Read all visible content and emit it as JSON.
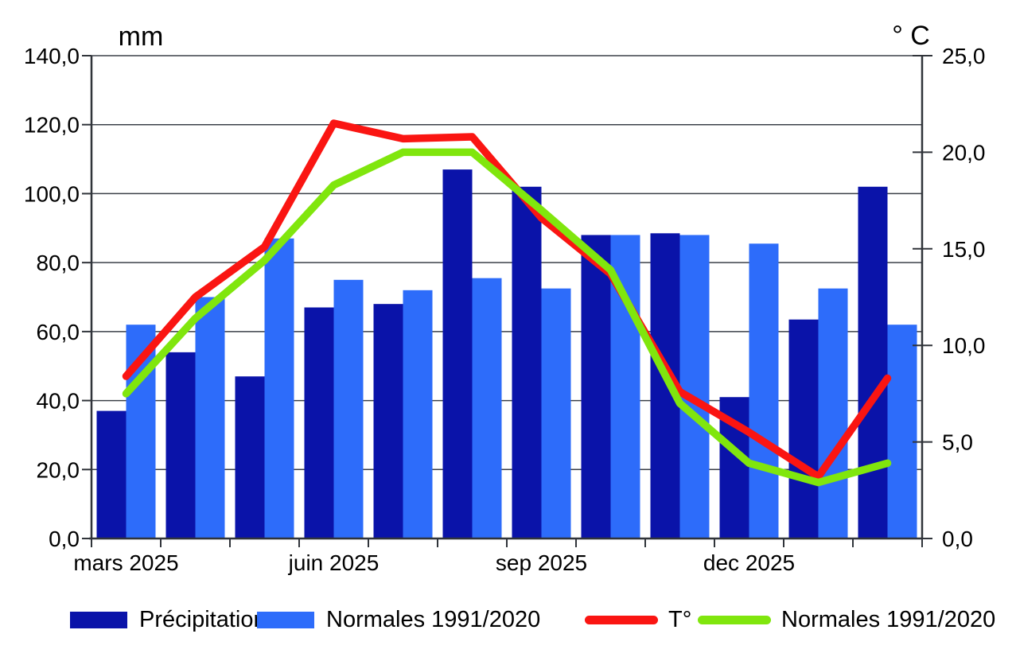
{
  "chart_data": {
    "type": "combo-bar-line",
    "title_left": "mm",
    "title_right": "° C",
    "n_groups": 12,
    "grid_on": true,
    "colors": {
      "precipitation_bar": "#0a13a9",
      "normales_bar": "#2d6cfa",
      "temperature_line": "#fa1512",
      "normales_line": "#80e60d",
      "axis": "#30343a",
      "gridline": "#3b4049",
      "text": "#000000"
    },
    "left_axis": {
      "title": "mm",
      "min": 0,
      "max": 140,
      "step": 20,
      "ticks": [
        {
          "v": 140,
          "label": "140,0"
        },
        {
          "v": 120,
          "label": "120,0"
        },
        {
          "v": 100,
          "label": "100,0"
        },
        {
          "v": 80,
          "label": "80,0"
        },
        {
          "v": 60,
          "label": "60,0"
        },
        {
          "v": 40,
          "label": "40,0"
        },
        {
          "v": 20,
          "label": "20,0"
        },
        {
          "v": 0,
          "label": "0,0"
        }
      ]
    },
    "right_axis": {
      "title": "° C",
      "min": 0,
      "max": 25,
      "step": 5,
      "ticks": [
        {
          "v": 25,
          "label": "25,0"
        },
        {
          "v": 20,
          "label": "20,0"
        },
        {
          "v": 15,
          "label": "15,0"
        },
        {
          "v": 10,
          "label": "10,0"
        },
        {
          "v": 5,
          "label": "5,0"
        },
        {
          "v": 0,
          "label": "0,0"
        }
      ]
    },
    "x_tick_labels": [
      {
        "group": 0,
        "label": "mars 2025"
      },
      {
        "group": 3,
        "label": "juin 2025"
      },
      {
        "group": 6,
        "label": "sep 2025"
      },
      {
        "group": 9,
        "label": "dec 2025"
      }
    ],
    "series": [
      {
        "name": "Précipitations",
        "type": "bar",
        "axis": "left",
        "color": "#0a13a9",
        "values": [
          37,
          54,
          47,
          67,
          68,
          107,
          102,
          88,
          88.5,
          41,
          63.5,
          102
        ]
      },
      {
        "name": "Normales 1991/2020",
        "type": "bar",
        "axis": "left",
        "color": "#2d6cfa",
        "values": [
          62,
          70,
          87,
          75,
          72,
          75.5,
          72.5,
          88,
          88,
          85.5,
          72.5,
          62
        ]
      },
      {
        "name": "T°",
        "type": "line",
        "axis": "right",
        "color": "#fa1512",
        "values": [
          8.4,
          12.5,
          15.1,
          21.5,
          20.7,
          20.8,
          16.6,
          13.7,
          7.6,
          5.5,
          3.2,
          8.3
        ]
      },
      {
        "name": "Normales 1991/2020",
        "type": "line",
        "axis": "right",
        "color": "#80e60d",
        "values": [
          7.5,
          11.4,
          14.4,
          18.3,
          20.0,
          20.0,
          17.0,
          13.9,
          7.0,
          3.9,
          2.9,
          3.9
        ]
      }
    ]
  },
  "legend": {
    "items": [
      {
        "label": "Précipitations"
      },
      {
        "label": "Normales 1991/2020"
      },
      {
        "label": "T°"
      },
      {
        "label": "Normales 1991/2020"
      }
    ]
  }
}
